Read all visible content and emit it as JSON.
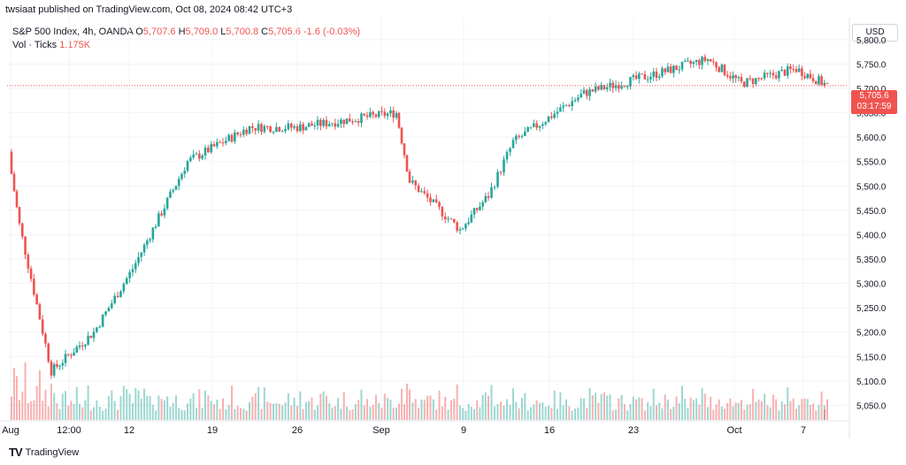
{
  "published": "twsiaat published on TradingView.com, Oct 08, 2024 08:42 UTC+3",
  "legend": {
    "symbol": "S&P 500 Index, 4h, OANDA",
    "o_label": "O",
    "o": "5,707.6",
    "h_label": "H",
    "h": "5,709.0",
    "l_label": "L",
    "l": "5,700.8",
    "c_label": "C",
    "c": "5,705.6",
    "change": "-1.6 (-0.03%)",
    "vol_label": "Vol · Ticks",
    "vol": "1.175K"
  },
  "currency": "USD",
  "last_price": "5,705.6",
  "countdown": "03:17:59",
  "footer": "TradingView",
  "colors": {
    "up": "#26a69a",
    "down": "#ef5350",
    "grid": "#f0f3fa"
  },
  "chart_data": {
    "type": "candlestick",
    "yaxis_ticks": [
      5050,
      5100,
      5150,
      5200,
      5250,
      5300,
      5350,
      5400,
      5450,
      5500,
      5550,
      5600,
      5650,
      5700,
      5750,
      5800
    ],
    "yaxis_tick_labels": [
      "5,050.0",
      "5,100.0",
      "5,150.0",
      "5,200.0",
      "5,250.0",
      "5,300.0",
      "5,350.0",
      "5,400.0",
      "5,450.0",
      "5,500.0",
      "5,550.0",
      "5,600.0",
      "5,650.0",
      "5,700.0",
      "5,750.0",
      "5,800.0"
    ],
    "ylim": [
      5020,
      5845
    ],
    "xaxis_labels": [
      "Aug",
      "12:00",
      "12",
      "19",
      "26",
      "Sep",
      "9",
      "16",
      "23",
      "Oct",
      "7"
    ],
    "last_close": 5705.6,
    "key_closes": [
      {
        "t": "Aug 1",
        "c": 5560
      },
      {
        "t": "Aug 2",
        "c": 5420
      },
      {
        "t": "Aug 5",
        "c": 5120
      },
      {
        "t": "Aug 7",
        "c": 5200
      },
      {
        "t": "Aug 12",
        "c": 5330
      },
      {
        "t": "Aug 16",
        "c": 5550
      },
      {
        "t": "Aug 21",
        "c": 5620
      },
      {
        "t": "Aug 26",
        "c": 5620
      },
      {
        "t": "Sep 3",
        "c": 5650
      },
      {
        "t": "Sep 4",
        "c": 5510
      },
      {
        "t": "Sep 6",
        "c": 5410
      },
      {
        "t": "Sep 11",
        "c": 5480
      },
      {
        "t": "Sep 13",
        "c": 5590
      },
      {
        "t": "Sep 19",
        "c": 5690
      },
      {
        "t": "Sep 24",
        "c": 5730
      },
      {
        "t": "Sep 27",
        "c": 5760
      },
      {
        "t": "Oct 1",
        "c": 5710
      },
      {
        "t": "Oct 4",
        "c": 5740
      },
      {
        "t": "Oct 7",
        "c": 5706
      }
    ]
  }
}
